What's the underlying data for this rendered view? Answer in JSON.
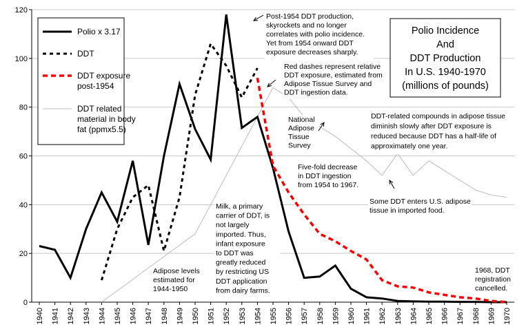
{
  "chart_data": {
    "type": "line",
    "title_lines": [
      "Polio Incidence",
      "And",
      "DDT Production",
      "In U.S. 1940-1970",
      "(millions of pounds)"
    ],
    "ylim": [
      0,
      120
    ],
    "yticks": [
      "0",
      "20",
      "40",
      "60",
      "80",
      "100",
      "120"
    ],
    "grid": true,
    "legend_position": "top-left",
    "x": [
      1940,
      1941,
      1942,
      1943,
      1944,
      1945,
      1946,
      1947,
      1948,
      1949,
      1950,
      1951,
      1952,
      1953,
      1954,
      1955,
      1956,
      1957,
      1958,
      1959,
      1960,
      1961,
      1962,
      1963,
      1964,
      1965,
      1966,
      1967,
      1968,
      1969,
      1970
    ],
    "xtick_labels": [
      "1940",
      "1941",
      "1942",
      "1943",
      "1944",
      "1945",
      "1946",
      "1947",
      "1948",
      "1949",
      "1950",
      "1951",
      "1952",
      "1953",
      "1954",
      "1955",
      "1956",
      "1957",
      "1958",
      "1959",
      "1960",
      "1961",
      "1962",
      "1963",
      "1964",
      "1965",
      "1966",
      "1967",
      "1968",
      "1969",
      "1970"
    ],
    "series": [
      {
        "name": "Polio x 3.17",
        "color": "#000000",
        "style": "solid",
        "points": [
          [
            1940,
            23
          ],
          [
            1941,
            21.5
          ],
          [
            1942,
            10
          ],
          [
            1943,
            30
          ],
          [
            1944,
            45
          ],
          [
            1945,
            33
          ],
          [
            1946,
            58
          ],
          [
            1947,
            23.5
          ],
          [
            1948,
            60
          ],
          [
            1949,
            89.5
          ],
          [
            1950,
            71
          ],
          [
            1951,
            58.5
          ],
          [
            1952,
            118
          ],
          [
            1953,
            71.5
          ],
          [
            1954,
            76
          ],
          [
            1955,
            55
          ],
          [
            1956,
            29
          ],
          [
            1957,
            10
          ],
          [
            1958,
            10.5
          ],
          [
            1959,
            15
          ],
          [
            1960,
            5.5
          ],
          [
            1961,
            2
          ],
          [
            1962,
            1.5
          ],
          [
            1963,
            0.5
          ],
          [
            1964,
            0.3
          ],
          [
            1965,
            0.2
          ],
          [
            1966,
            0.2
          ],
          [
            1967,
            0.1
          ],
          [
            1968,
            0.1
          ],
          [
            1969,
            0
          ],
          [
            1970,
            0
          ]
        ]
      },
      {
        "name": "DDT",
        "color": "#000000",
        "style": "dotted",
        "points": [
          [
            1944,
            9
          ],
          [
            1945,
            30
          ],
          [
            1946,
            43
          ],
          [
            1947,
            48
          ],
          [
            1948,
            21
          ],
          [
            1949,
            43
          ],
          [
            1950,
            85
          ],
          [
            1951,
            106
          ],
          [
            1952,
            97
          ],
          [
            1953,
            84
          ],
          [
            1954,
            96
          ]
        ]
      },
      {
        "name": "DDT exposure post-1954",
        "legend_lines": [
          "DDT exposure",
          "post-1954"
        ],
        "color": "#ff0000",
        "style": "dashed",
        "points": [
          [
            1954,
            92
          ],
          [
            1955,
            56
          ],
          [
            1956,
            45
          ],
          [
            1957,
            36
          ],
          [
            1958,
            28
          ],
          [
            1959,
            25
          ],
          [
            1960,
            21
          ],
          [
            1961,
            17.5
          ],
          [
            1962,
            9
          ],
          [
            1963,
            6.5
          ],
          [
            1964,
            6
          ],
          [
            1965,
            4
          ],
          [
            1966,
            3
          ],
          [
            1967,
            2
          ],
          [
            1968,
            1.5
          ],
          [
            1969,
            0.5
          ],
          [
            1970,
            0
          ]
        ]
      },
      {
        "name": "DDT related material in body fat (ppmx5.5)",
        "legend_lines": [
          "DDT related",
          "material in body",
          "fat (ppmx5.5)"
        ],
        "color": "#bdbdbd",
        "style": "thin",
        "points": [
          [
            1944,
            0
          ],
          [
            1950,
            28
          ],
          [
            1955,
            88
          ],
          [
            1956,
            84
          ],
          [
            1957,
            76
          ],
          [
            1958,
            72
          ],
          [
            1959,
            68
          ],
          [
            1960,
            63
          ],
          [
            1961,
            58
          ],
          [
            1962,
            52
          ],
          [
            1963,
            61
          ],
          [
            1964,
            52
          ],
          [
            1965,
            58
          ],
          [
            1966,
            54
          ],
          [
            1967,
            50
          ],
          [
            1968,
            46
          ],
          [
            1969,
            44
          ],
          [
            1970,
            43
          ]
        ]
      }
    ],
    "annotations": [
      {
        "id": "post1954",
        "lines": [
          "Post-1954 DDT production,",
          "skyrockets and no longer",
          "correlates with polio incidence.",
          "Yet from 1954 onward DDT",
          "exposure decreases sharply."
        ]
      },
      {
        "id": "reddash",
        "lines": [
          "Red dashes represent relative",
          "DDT exposure, estimated from",
          "Adipose Tissue Survey and",
          "DDT ingestion data."
        ]
      },
      {
        "id": "adiposediminish",
        "lines": [
          "DDT-related compounds in adipose tissue",
          "diminish slowly after DDT exposure is",
          "reduced because DDT has a half-life of",
          "approximately one year."
        ]
      },
      {
        "id": "survey",
        "lines": [
          "National",
          "Adipose",
          "Tissue",
          "Survey"
        ]
      },
      {
        "id": "fivefold",
        "lines": [
          "Five-fold decrease",
          "in DDT ingestion",
          "from 1954 to 1967."
        ]
      },
      {
        "id": "imported",
        "lines": [
          "Some DDT enters U.S. adipose",
          "tissue in imported food."
        ]
      },
      {
        "id": "milk",
        "lines": [
          "Milk, a primary",
          "carrier of DDT, is",
          "not largely",
          "imported. Thus,",
          "infant exposure",
          "to DDT was",
          "greatly reduced",
          "by restricting US",
          "DDT application",
          "from dairy farms."
        ]
      },
      {
        "id": "adiposelevels",
        "lines": [
          "Adipose levels",
          "estimated for",
          "1944-1950"
        ]
      },
      {
        "id": "registration",
        "lines": [
          "1968, DDT",
          "registration",
          "cancelled."
        ]
      }
    ]
  }
}
